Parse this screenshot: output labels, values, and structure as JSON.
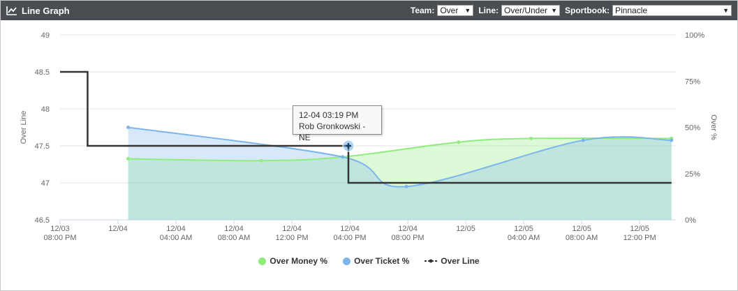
{
  "header": {
    "title": "Line Graph",
    "team_label": "Team:",
    "team_value": "Over",
    "line_label": "Line:",
    "line_value": "Over/Under",
    "book_label": "Sportbook:",
    "book_value": "Pinnacle"
  },
  "tooltip": {
    "time": "12-04 03:19 PM",
    "text": "Rob Gronkowski - NE"
  },
  "colors": {
    "money": "#90ed7d",
    "ticket": "#7cb5ec",
    "line": "#333333"
  },
  "chart_data": {
    "type": "line",
    "xlabel": "",
    "ylabel": "Over Line",
    "y2label": "Over %",
    "ylim": [
      46.5,
      49
    ],
    "y_ticks": [
      "46.5",
      "47",
      "47.5",
      "48",
      "48.5",
      "49"
    ],
    "y2lim": [
      0,
      100
    ],
    "y2_ticks": [
      "0%",
      "25%",
      "50%",
      "75%",
      "100%"
    ],
    "xlim_hours": [
      0,
      42.5
    ],
    "x_ticks": [
      {
        "h": 0,
        "l1": "12/03",
        "l2": "08:00 PM"
      },
      {
        "h": 4,
        "l1": "12/04",
        "l2": ""
      },
      {
        "h": 8,
        "l1": "12/04",
        "l2": "04:00 AM"
      },
      {
        "h": 12,
        "l1": "12/04",
        "l2": "08:00 AM"
      },
      {
        "h": 16,
        "l1": "12/04",
        "l2": "12:00 PM"
      },
      {
        "h": 20,
        "l1": "12/04",
        "l2": "04:00 PM"
      },
      {
        "h": 24,
        "l1": "12/04",
        "l2": "08:00 PM"
      },
      {
        "h": 28,
        "l1": "12/05",
        "l2": ""
      },
      {
        "h": 32,
        "l1": "12/05",
        "l2": "04:00 AM"
      },
      {
        "h": 36,
        "l1": "12/05",
        "l2": "08:00 AM"
      },
      {
        "h": 40,
        "l1": "12/05",
        "l2": "12:00 PM"
      }
    ],
    "grid": true,
    "legend_position": "bottom-center",
    "series": [
      {
        "name": "Over Money %",
        "axis": "right",
        "type": "area",
        "x": [
          4.7,
          13.9,
          19.5,
          27.5,
          32.5,
          42.2
        ],
        "y": [
          33,
          32,
          34,
          42,
          44,
          44
        ]
      },
      {
        "name": "Over Ticket %",
        "axis": "right",
        "type": "area",
        "x": [
          4.7,
          19.5,
          23.9,
          36.1,
          42.2
        ],
        "y": [
          50,
          34,
          18,
          43,
          43
        ]
      },
      {
        "name": "Over Line",
        "axis": "left",
        "type": "step",
        "x": [
          0,
          1.9,
          19.9,
          42.2
        ],
        "y": [
          48.5,
          47.5,
          47.0,
          47.0
        ]
      }
    ]
  }
}
